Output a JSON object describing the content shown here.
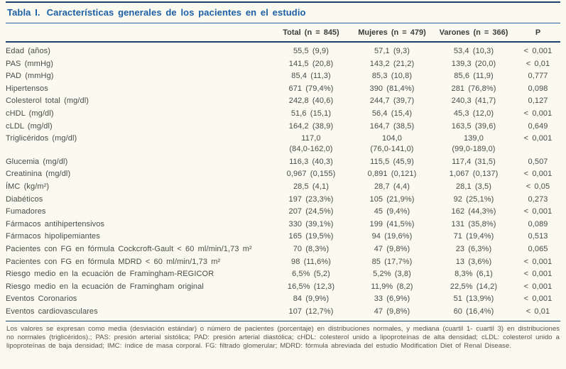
{
  "colors": {
    "background": "#fafaf1",
    "title_blue": "#1d5fa6",
    "rule_navy": "#1b436f",
    "body_text": "#4b4b47"
  },
  "title": {
    "label": "Tabla I.",
    "text": "Características generales de los pacientes en el estudio"
  },
  "table": {
    "columns": {
      "label": "",
      "total": "Total (n = 845)",
      "mujeres": "Mujeres (n = 479)",
      "varones": "Varones (n = 366)",
      "p": "P"
    },
    "rows": [
      {
        "label": "Edad (años)",
        "total": "55,5 (9,9)",
        "mujeres": "57,1 (9,3)",
        "varones": "53,4 (10,3)",
        "p": "< 0,001"
      },
      {
        "label": "PAS (mmHg)",
        "total": "141,5 (20,8)",
        "mujeres": "143,2 (21,2)",
        "varones": "139,3 (20,0)",
        "p": "< 0,01"
      },
      {
        "label": "PAD (mmHg)",
        "total": "85,4 (11,3)",
        "mujeres": "85,3 (10,8)",
        "varones": "85,6 (11,9)",
        "p": "0,777"
      },
      {
        "label": "Hipertensos",
        "total": "671 (79,4%)",
        "mujeres": "390 (81,4%)",
        "varones": "281 (76,8%)",
        "p": "0,098"
      },
      {
        "label": "Colesterol total (mg/dl)",
        "total": "242,8 (40,6)",
        "mujeres": "244,7 (39,7)",
        "varones": "240,3 (41,7)",
        "p": "0,127"
      },
      {
        "label": "cHDL (mg/dl)",
        "total": "51,6 (15,1)",
        "mujeres": "56,4 (15,4)",
        "varones": "45,3 (12,0)",
        "p": "< 0,001"
      },
      {
        "label": "cLDL (mg/dl)",
        "total": "164,2 (38,9)",
        "mujeres": "164,7 (38,5)",
        "varones": "163,5 (39,6)",
        "p": "0,649"
      },
      {
        "label": "Triglicéridos (mg/dl)",
        "total": "117,0\n(84,0-162,0)",
        "mujeres": "104,0\n(76,0-141,0)",
        "varones": "139,0\n(99,0-189,0)",
        "p": "< 0,001"
      },
      {
        "label": "Glucemia (mg/dl)",
        "total": "116,3 (40,3)",
        "mujeres": "115,5 (45,9)",
        "varones": "117,4 (31,5)",
        "p": "0,507"
      },
      {
        "label": "Creatinina (mg/dl)",
        "total": "0,967 (0,155)",
        "mujeres": "0,891 (0,121)",
        "varones": "1,067 (0,137)",
        "p": "< 0,001"
      },
      {
        "label": "ÍMC (kg/m²)",
        "total": "28,5 (4,1)",
        "mujeres": "28,7 (4,4)",
        "varones": "28,1 (3,5)",
        "p": "< 0,05"
      },
      {
        "label": "Diabéticos",
        "total": "197 (23,3%)",
        "mujeres": "105 (21,9%)",
        "varones": "92 (25,1%)",
        "p": "0,273"
      },
      {
        "label": "Fumadores",
        "total": "207 (24,5%)",
        "mujeres": "45 (9,4%)",
        "varones": "162 (44,3%)",
        "p": "< 0,001"
      },
      {
        "label": "Fármacos antihipertensivos",
        "total": "330 (39,1%)",
        "mujeres": "199 (41,5%)",
        "varones": "131 (35,8%)",
        "p": "0,089"
      },
      {
        "label": "Fármacos hipolipemiantes",
        "total": "165 (19,5%)",
        "mujeres": "94 (19,6%)",
        "varones": "71 (19,4%)",
        "p": "0,513"
      },
      {
        "label": "Pacientes con FG en fórmula Cockcroft-Gault < 60 ml/min/1,73 m²",
        "total": "70 (8,3%)",
        "mujeres": "47 (9,8%)",
        "varones": "23 (6,3%)",
        "p": "0,065"
      },
      {
        "label": "Pacientes con FG en fórmula MDRD < 60 ml/min/1,73 m²",
        "total": "98 (11,6%)",
        "mujeres": "85 (17,7%)",
        "varones": "13 (3,6%)",
        "p": "< 0,001"
      },
      {
        "label": "Riesgo medio en la ecuación de Framingham-REGICOR",
        "total": "6,5% (5,2)",
        "mujeres": "5,2% (3,8)",
        "varones": "8,3% (6,1)",
        "p": "< 0,001"
      },
      {
        "label": "Riesgo medio en la ecuación de Framingham original",
        "total": "16,5% (12,3)",
        "mujeres": "11,9% (8,2)",
        "varones": "22,5% (14,2)",
        "p": "< 0,001"
      },
      {
        "label": "Eventos Coronarios",
        "total": "84 (9,9%)",
        "mujeres": "33 (6,9%)",
        "varones": "51 (13,9%)",
        "p": "< 0,001"
      },
      {
        "label": "Eventos cardiovasculares",
        "total": "107 (12,7%)",
        "mujeres": "47 (9,8%)",
        "varones": "60 (16,4%)",
        "p": "< 0,01"
      }
    ]
  },
  "footnote": "Los valores se expresan como media (desviación estándar) o número de pacientes (porcentaje) en distribuciones normales, y mediana (cuartil 1- cuartil 3) en distribuciones no normales (triglicéridos).; PAS: presión arterial sistólica; PAD: presión arterial diastólica; cHDL: colesterol unido a lipoproteínas de alta densidad; cLDL: colesterol unido a lipoproteínas de baja densidad; IMC: índice de masa corporal. FG: filtrado glomerular; MDRD: fórmula abreviada del estudio Modification Diet of Renal Disease."
}
